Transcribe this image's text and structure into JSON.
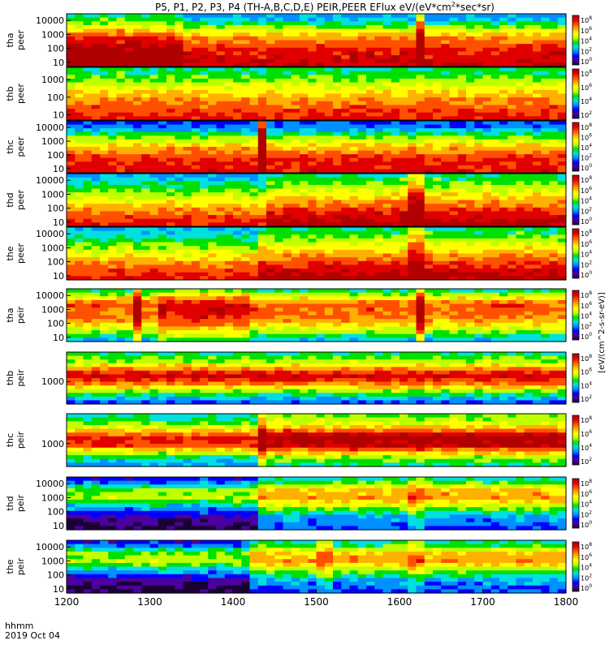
{
  "chart_data": {
    "type": "heatmap",
    "title": "P5, P1, P2, P3, P4 (TH-A,B,C,D,E) PEIR,PEER EFlux eV/(eV*cm^2*sec*sr)",
    "title_parts": {
      "main": "P5, P1, P2, P3, P4 (TH-A,B,C,D,E) PEIR,PEER EFlux eV/(eV*cm",
      "sup": "2",
      "tail": "*sec*sr)"
    },
    "colorbar_label": "[eV/(cm^2-s-sr-eV)]",
    "x_axis": {
      "ticks": [
        "1200",
        "1300",
        "1400",
        "1500",
        "1600",
        "1700",
        "1800"
      ],
      "range": [
        1200,
        1800
      ],
      "units_label": "hhmm",
      "date_label": "2019 Oct 04"
    },
    "colormap": [
      "#1a0033",
      "#4b00a0",
      "#0000ff",
      "#0090ff",
      "#00e0e0",
      "#00e000",
      "#c0ff00",
      "#ffff00",
      "#ffb000",
      "#ff5000",
      "#e00000",
      "#b00000"
    ],
    "panels": [
      {
        "probe": "tha",
        "instrument": "peer",
        "yticks": [
          "10000",
          "1000",
          "100",
          "10"
        ],
        "yrange": [
          5,
          30000
        ],
        "cbar_ticks": [
          "10^8",
          "10^6",
          "10^4",
          "10^2",
          "10^0"
        ],
        "base": [
          [
            0,
            0.95
          ],
          [
            0.3,
            0.9
          ],
          [
            0.55,
            0.75
          ],
          [
            0.72,
            0.55
          ],
          [
            0.85,
            0.38
          ],
          [
            1,
            0.25
          ]
        ],
        "events": [
          {
            "x": 1330,
            "w": 4,
            "amp": 0.25
          },
          {
            "x": 1625,
            "w": 3,
            "amp": 0.35
          }
        ],
        "segments": [
          {
            "start": 1200,
            "end": 1320,
            "shift": 0.12
          }
        ]
      },
      {
        "probe": "thb",
        "instrument": "peer",
        "yticks": [
          "1000",
          "100",
          "10"
        ],
        "yrange": [
          5,
          5000
        ],
        "cbar_ticks": [
          "10^8",
          "10^6",
          "10^4",
          "10^2"
        ],
        "base": [
          [
            0,
            0.9
          ],
          [
            0.35,
            0.78
          ],
          [
            0.6,
            0.62
          ],
          [
            0.8,
            0.48
          ],
          [
            1,
            0.4
          ]
        ],
        "events": [],
        "segments": []
      },
      {
        "probe": "thc",
        "instrument": "peer",
        "yticks": [
          "10000",
          "1000",
          "100",
          "10"
        ],
        "yrange": [
          5,
          30000
        ],
        "cbar_ticks": [
          "10^8",
          "10^6",
          "10^4",
          "10^2",
          "10^0"
        ],
        "base": [
          [
            0,
            0.92
          ],
          [
            0.3,
            0.85
          ],
          [
            0.5,
            0.7
          ],
          [
            0.7,
            0.5
          ],
          [
            0.85,
            0.28
          ],
          [
            1,
            0.18
          ]
        ],
        "events": [
          {
            "x": 1435,
            "w": 3,
            "amp": 0.6
          }
        ],
        "segments": []
      },
      {
        "probe": "thd",
        "instrument": "peer",
        "yticks": [
          "10000",
          "1000",
          "100",
          "10"
        ],
        "yrange": [
          5,
          30000
        ],
        "cbar_ticks": [
          "10^8",
          "10^6",
          "10^4",
          "10^2",
          "10^0"
        ],
        "base": [
          [
            0,
            0.92
          ],
          [
            0.25,
            0.8
          ],
          [
            0.5,
            0.62
          ],
          [
            0.7,
            0.48
          ],
          [
            0.85,
            0.36
          ],
          [
            1,
            0.3
          ]
        ],
        "events": [
          {
            "x": 1620,
            "w": 8,
            "amp": 0.3
          }
        ],
        "segments": [
          {
            "start": 1440,
            "end": 1800,
            "shift": 0.1
          }
        ]
      },
      {
        "probe": "the",
        "instrument": "peer",
        "yticks": [
          "10000",
          "1000",
          "100",
          "10"
        ],
        "yrange": [
          5,
          30000
        ],
        "cbar_ticks": [
          "10^8",
          "10^6",
          "10^4",
          "10^2",
          "10^0"
        ],
        "base": [
          [
            0,
            0.92
          ],
          [
            0.25,
            0.8
          ],
          [
            0.5,
            0.62
          ],
          [
            0.7,
            0.48
          ],
          [
            0.85,
            0.36
          ],
          [
            1,
            0.3
          ]
        ],
        "events": [
          {
            "x": 1620,
            "w": 6,
            "amp": 0.3
          }
        ],
        "segments": [
          {
            "start": 1435,
            "end": 1800,
            "shift": 0.1
          }
        ]
      },
      {
        "probe": "tha",
        "instrument": "peir",
        "yticks": [
          "10000",
          "1000",
          "100",
          "10"
        ],
        "yrange": [
          5,
          30000
        ],
        "cbar_ticks": [
          "10^8",
          "10^6",
          "10^4",
          "10^2",
          "10^0"
        ],
        "base": [
          [
            0,
            0.3
          ],
          [
            0.2,
            0.55
          ],
          [
            0.45,
            0.78
          ],
          [
            0.7,
            0.82
          ],
          [
            0.85,
            0.6
          ],
          [
            1,
            0.35
          ]
        ],
        "events": [
          {
            "x": 1285,
            "w": 5,
            "amp": 0.25
          },
          {
            "x": 1625,
            "w": 5,
            "amp": 0.3
          }
        ],
        "segments": [
          {
            "start": 1310,
            "end": 1420,
            "shift": 0.12
          }
        ]
      },
      {
        "probe": "thb",
        "instrument": "peir",
        "yticks": [
          "1000"
        ],
        "yrange": [
          100,
          20000
        ],
        "cbar_ticks": [
          "10^8",
          "10^6",
          "10^4",
          "10^2"
        ],
        "base": [
          [
            0,
            0.2
          ],
          [
            0.2,
            0.45
          ],
          [
            0.4,
            0.8
          ],
          [
            0.55,
            0.95
          ],
          [
            0.7,
            0.7
          ],
          [
            0.85,
            0.5
          ],
          [
            1,
            0.4
          ]
        ],
        "events": [],
        "segments": []
      },
      {
        "probe": "thc",
        "instrument": "peir",
        "yticks": [
          "1000"
        ],
        "yrange": [
          100,
          20000
        ],
        "cbar_ticks": [
          "10^8",
          "10^6",
          "10^4",
          "10^2"
        ],
        "base": [
          [
            0,
            0.25
          ],
          [
            0.2,
            0.45
          ],
          [
            0.4,
            0.85
          ],
          [
            0.55,
            0.9
          ],
          [
            0.7,
            0.65
          ],
          [
            0.85,
            0.45
          ],
          [
            1,
            0.35
          ]
        ],
        "events": [
          {
            "x": 1432,
            "w": 3,
            "amp": 0.3
          }
        ],
        "segments": [
          {
            "start": 1432,
            "end": 1800,
            "shift": 0.12
          }
        ]
      },
      {
        "probe": "thd",
        "instrument": "peir",
        "yticks": [
          "10000",
          "1000",
          "100",
          "10"
        ],
        "yrange": [
          5,
          30000
        ],
        "cbar_ticks": [
          "10^8",
          "10^6",
          "10^4",
          "10^2",
          "10^0"
        ],
        "base": [
          [
            0,
            0.2
          ],
          [
            0.25,
            0.3
          ],
          [
            0.45,
            0.55
          ],
          [
            0.6,
            0.75
          ],
          [
            0.75,
            0.7
          ],
          [
            0.9,
            0.45
          ],
          [
            1,
            0.35
          ]
        ],
        "events": [
          {
            "x": 1620,
            "w": 6,
            "amp": 0.2
          }
        ],
        "segments": [
          {
            "start": 1200,
            "end": 1425,
            "shift": -0.2
          }
        ]
      },
      {
        "probe": "the",
        "instrument": "peir",
        "yticks": [
          "10000",
          "1000",
          "100",
          "10"
        ],
        "yrange": [
          5,
          30000
        ],
        "cbar_ticks": [
          "10^8",
          "10^6",
          "10^4",
          "10^2",
          "10^0"
        ],
        "base": [
          [
            0,
            0.2
          ],
          [
            0.25,
            0.3
          ],
          [
            0.45,
            0.55
          ],
          [
            0.6,
            0.75
          ],
          [
            0.75,
            0.7
          ],
          [
            0.9,
            0.45
          ],
          [
            1,
            0.35
          ]
        ],
        "events": [
          {
            "x": 1510,
            "w": 5,
            "amp": 0.2
          },
          {
            "x": 1620,
            "w": 6,
            "amp": 0.2
          }
        ],
        "segments": [
          {
            "start": 1200,
            "end": 1422,
            "shift": -0.2
          }
        ]
      }
    ]
  }
}
